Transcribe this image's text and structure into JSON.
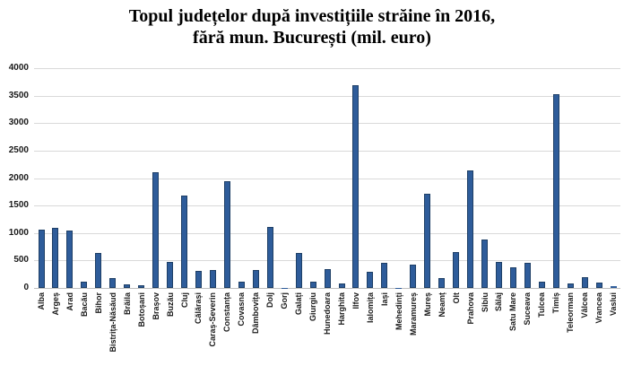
{
  "title": {
    "line1": "Topul județelor după investițiile străine în 2016,",
    "line2": "fără mun. București (mil. euro)"
  },
  "chart_data": {
    "type": "bar",
    "title": "Topul județelor după investițiile străine în 2016, fără mun. București (mil. euro)",
    "xlabel": "",
    "ylabel": "",
    "ylim": [
      0,
      4000
    ],
    "yticks": [
      0,
      500,
      1000,
      1500,
      2000,
      2500,
      3000,
      3500,
      4000
    ],
    "grid": "horizontal",
    "legend": "none",
    "categories": [
      "Alba",
      "Argeș",
      "Arad",
      "Bacău",
      "Bihor",
      "Bistrița-Năsăud",
      "Brăila",
      "Botoșani",
      "Brașov",
      "Buzău",
      "Cluj",
      "Călărași",
      "Caraș-Severin",
      "Constanța",
      "Covasna",
      "Dâmbovița",
      "Dolj",
      "Gorj",
      "Galați",
      "Giurgiu",
      "Hunedoara",
      "Harghita",
      "Ilfov",
      "Ialomița",
      "Iași",
      "Mehedinți",
      "Maramureș",
      "Mureș",
      "Neamț",
      "Olt",
      "Prahova",
      "Sibiu",
      "Sălaj",
      "Satu Mare",
      "Suceava",
      "Tulcea",
      "Timiș",
      "Teleorman",
      "Vâlcea",
      "Vrancea",
      "Vaslui"
    ],
    "values": [
      1060,
      1090,
      1040,
      120,
      640,
      180,
      60,
      50,
      2110,
      470,
      1680,
      310,
      320,
      1940,
      110,
      330,
      1110,
      5,
      640,
      110,
      350,
      80,
      3690,
      300,
      460,
      5,
      430,
      1720,
      180,
      650,
      2140,
      880,
      470,
      370,
      450,
      120,
      3520,
      90,
      190,
      100,
      30
    ],
    "colors": {
      "bar_fill": "#2e5c9a",
      "bar_border": "#1e3f66",
      "gridline": "#d9d9d9",
      "axis_line": "#bfbfbf",
      "tick_label": "#1a1a1a",
      "title": "#000000",
      "background": "#ffffff"
    }
  }
}
